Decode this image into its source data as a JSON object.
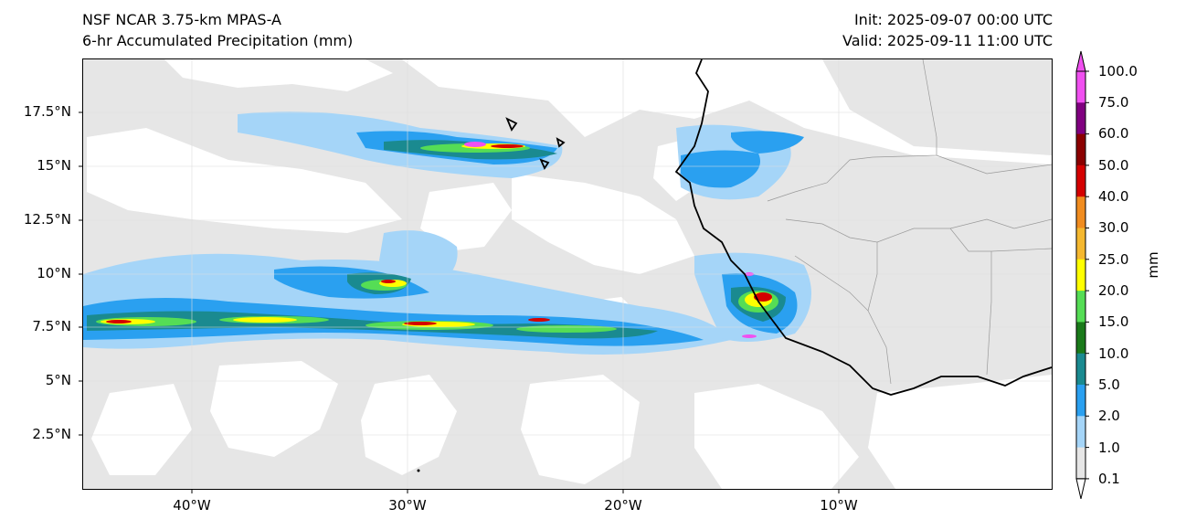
{
  "header": {
    "model": "NSF NCAR 3.75-km MPAS-A",
    "field": "6-hr Accumulated Precipitation (mm)",
    "init": "Init: 2025-09-07 00:00 UTC",
    "valid": "Valid: 2025-09-11 11:00 UTC"
  },
  "axes": {
    "lat_ticks": [
      "17.5°N",
      "15°N",
      "12.5°N",
      "10°N",
      "7.5°N",
      "5°N",
      "2.5°N"
    ],
    "lon_ticks": [
      "40°W",
      "30°W",
      "20°W",
      "10°W"
    ]
  },
  "colorbar": {
    "unit": "mm",
    "levels": [
      "100.0",
      "75.0",
      "60.0",
      "50.0",
      "40.0",
      "30.0",
      "25.0",
      "20.0",
      "15.0",
      "10.0",
      "5.0",
      "2.0",
      "1.0",
      "0.1"
    ],
    "colors": [
      "#f050f0",
      "#800080",
      "#8b0000",
      "#d40000",
      "#f08c20",
      "#f5b830",
      "#ffff00",
      "#55dd55",
      "#1a7a1a",
      "#1a8a90",
      "#2aa0f0",
      "#a5d5f8",
      "#e6e6e6"
    ]
  },
  "colors": {
    "light": "#e6e6e6",
    "pale_blue": "#a5d5f8",
    "blue": "#2aa0f0",
    "teal": "#1a8a90",
    "green": "#55dd55",
    "yellow": "#ffff00",
    "red": "#d40000",
    "magenta": "#f050f0"
  }
}
